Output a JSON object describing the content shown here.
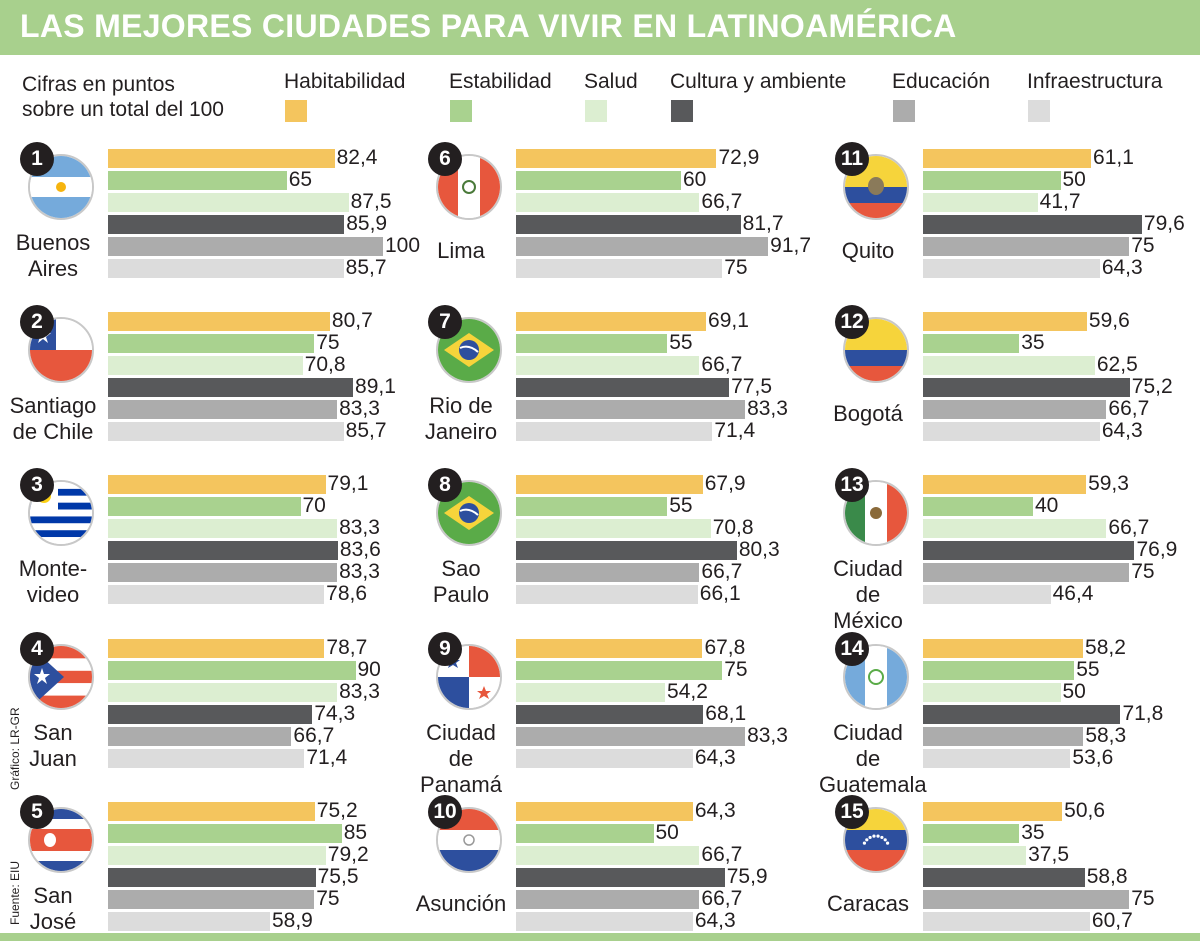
{
  "title": "LAS MEJORES CIUDADES PARA VIVIR EN LATINOAMÉRICA",
  "units_note": "Cifras en puntos\nsobre un total del 100",
  "credits": {
    "graphic": "Gráfico: LR-GR",
    "source": "Fuente: EIU"
  },
  "colors": {
    "Habitabilidad": "#f4c55e",
    "Estabilidad": "#a9d28f",
    "Salud": "#dceed1",
    "Cultura y ambiente": "#58595b",
    "Educación": "#acacac",
    "Infraestructura": "#dcdcdc",
    "title_bar": "#a8d08d"
  },
  "chart_data": {
    "type": "bar",
    "orientation": "horizontal",
    "categories": [
      "Habitabilidad",
      "Estabilidad",
      "Salud",
      "Cultura y ambiente",
      "Educación",
      "Infraestructura"
    ],
    "xlim": [
      0,
      100
    ],
    "grid": false,
    "legend": "top",
    "cities": [
      {
        "rank": "1",
        "name": "Buenos\nAires",
        "flag": "argentina-flag-icon",
        "values": [
          82.4,
          65,
          87.5,
          85.9,
          100,
          85.7
        ],
        "labels": [
          "82,4",
          "65",
          "87,5",
          "85,9",
          "100",
          "85,7"
        ]
      },
      {
        "rank": "2",
        "name": "Santiago\nde Chile",
        "flag": "chile-flag-icon",
        "values": [
          80.7,
          75,
          70.8,
          89.1,
          83.3,
          85.7
        ],
        "labels": [
          "80,7",
          "75",
          "70,8",
          "89,1",
          "83,3",
          "85,7"
        ]
      },
      {
        "rank": "3",
        "name": "Monte-\nvideo",
        "flag": "uruguay-flag-icon",
        "values": [
          79.1,
          70,
          83.3,
          83.6,
          83.3,
          78.6
        ],
        "labels": [
          "79,1",
          "70",
          "83,3",
          "83,6",
          "83,3",
          "78,6"
        ]
      },
      {
        "rank": "4",
        "name": "San\nJuan",
        "flag": "puerto-rico-flag-icon",
        "values": [
          78.7,
          90,
          83.3,
          74.3,
          66.7,
          71.4
        ],
        "labels": [
          "78,7",
          "90",
          "83,3",
          "74,3",
          "66,7",
          "71,4"
        ]
      },
      {
        "rank": "5",
        "name": "San\nJosé",
        "flag": "costa-rica-flag-icon",
        "values": [
          75.2,
          85,
          79.2,
          75.5,
          75,
          58.9
        ],
        "labels": [
          "75,2",
          "85",
          "79,2",
          "75,5",
          "75",
          "58,9"
        ]
      },
      {
        "rank": "6",
        "name": "Lima",
        "flag": "peru-flag-icon",
        "values": [
          72.9,
          60,
          66.7,
          81.7,
          91.7,
          75
        ],
        "labels": [
          "72,9",
          "60",
          "66,7",
          "81,7",
          "91,7",
          "75"
        ]
      },
      {
        "rank": "7",
        "name": "Rio de\nJaneiro",
        "flag": "brazil-flag-icon",
        "values": [
          69.1,
          55,
          66.7,
          77.5,
          83.3,
          71.4
        ],
        "labels": [
          "69,1",
          "55",
          "66,7",
          "77,5",
          "83,3",
          "71,4"
        ]
      },
      {
        "rank": "8",
        "name": "Sao\nPaulo",
        "flag": "brazil-flag-icon",
        "values": [
          67.9,
          55,
          70.8,
          80.3,
          66.7,
          66.1
        ],
        "labels": [
          "67,9",
          "55",
          "70,8",
          "80,3",
          "66,7",
          "66,1"
        ]
      },
      {
        "rank": "9",
        "name": "Ciudad de\nPanamá",
        "flag": "panama-flag-icon",
        "values": [
          67.8,
          75,
          54.2,
          68.1,
          83.3,
          64.3
        ],
        "labels": [
          "67,8",
          "75",
          "54,2",
          "68,1",
          "83,3",
          "64,3"
        ]
      },
      {
        "rank": "10",
        "name": "Asunción",
        "flag": "paraguay-flag-icon",
        "values": [
          64.3,
          50,
          66.7,
          75.9,
          66.7,
          64.3
        ],
        "labels": [
          "64,3",
          "50",
          "66,7",
          "75,9",
          "66,7",
          "64,3"
        ]
      },
      {
        "rank": "11",
        "name": "Quito",
        "flag": "ecuador-flag-icon",
        "values": [
          61.1,
          50,
          41.7,
          79.6,
          75,
          64.3
        ],
        "labels": [
          "61,1",
          "50",
          "41,7",
          "79,6",
          "75",
          "64,3"
        ]
      },
      {
        "rank": "12",
        "name": "Bogotá",
        "flag": "colombia-flag-icon",
        "values": [
          59.6,
          35,
          62.5,
          75.2,
          66.7,
          64.3
        ],
        "labels": [
          "59,6",
          "35",
          "62,5",
          "75,2",
          "66,7",
          "64,3"
        ]
      },
      {
        "rank": "13",
        "name": "Ciudad\nde México",
        "flag": "mexico-flag-icon",
        "values": [
          59.3,
          40,
          66.7,
          76.9,
          75,
          46.4
        ],
        "labels": [
          "59,3",
          "40",
          "66,7",
          "76,9",
          "75",
          "46,4"
        ]
      },
      {
        "rank": "14",
        "name": "Ciudad de\nGuatemala",
        "flag": "guatemala-flag-icon",
        "values": [
          58.2,
          55,
          50,
          71.8,
          58.3,
          53.6
        ],
        "labels": [
          "58,2",
          "55",
          "50",
          "71,8",
          "58,3",
          "53,6"
        ]
      },
      {
        "rank": "15",
        "name": "Caracas",
        "flag": "venezuela-flag-icon",
        "values": [
          50.6,
          35,
          37.5,
          58.8,
          75,
          60.7
        ],
        "labels": [
          "50,6",
          "35",
          "37,5",
          "58,8",
          "75",
          "60,7"
        ]
      }
    ]
  }
}
